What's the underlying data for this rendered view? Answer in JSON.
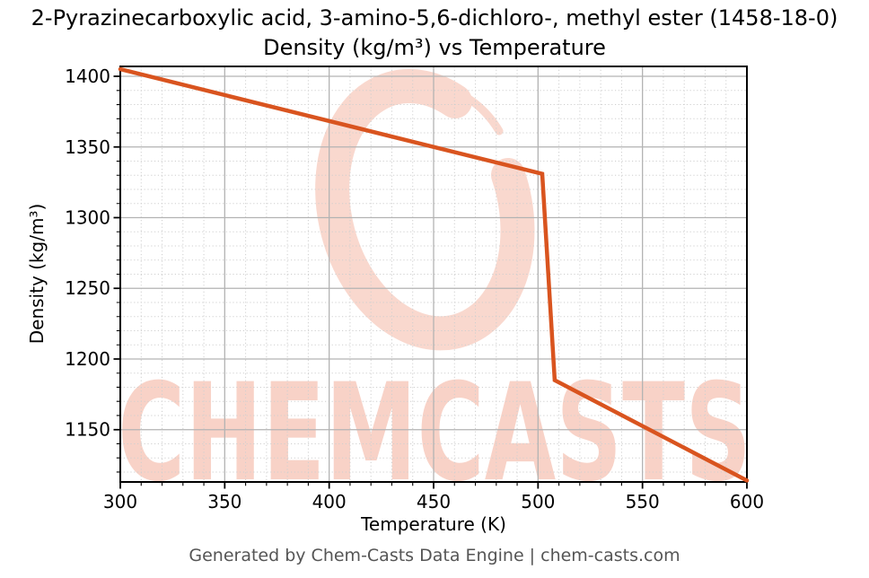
{
  "title": {
    "line1": "2-Pyrazinecarboxylic acid, 3-amino-5,6-dichloro-, methyl ester (1458-18-0)",
    "line2": "Density (kg/m³) vs Temperature"
  },
  "footer": "Generated by Chem-Casts Data Engine | chem-casts.com",
  "watermark": {
    "text": "CHEMCASTS",
    "color": "#f8d2c7",
    "logo_color": "#f9d8ce"
  },
  "chart_data": {
    "type": "line",
    "title": "2-Pyrazinecarboxylic acid, 3-amino-5,6-dichloro-, methyl ester (1458-18-0) — Density (kg/m³) vs Temperature",
    "xlabel": "Temperature (K)",
    "ylabel": "Density (kg/m³)",
    "xlim": [
      300,
      600
    ],
    "ylim": [
      1113,
      1407
    ],
    "xticks": [
      300,
      350,
      400,
      450,
      500,
      550,
      600
    ],
    "yticks": [
      1150,
      1200,
      1250,
      1300,
      1350,
      1400
    ],
    "minor_step_x": 10,
    "minor_step_y": 10,
    "grid": true,
    "legend": "none",
    "line_color": "#d9541f",
    "series": [
      {
        "name": "Density",
        "points": [
          [
            300,
            1405
          ],
          [
            502,
            1331
          ],
          [
            508,
            1185
          ],
          [
            600,
            1114
          ]
        ]
      }
    ]
  }
}
